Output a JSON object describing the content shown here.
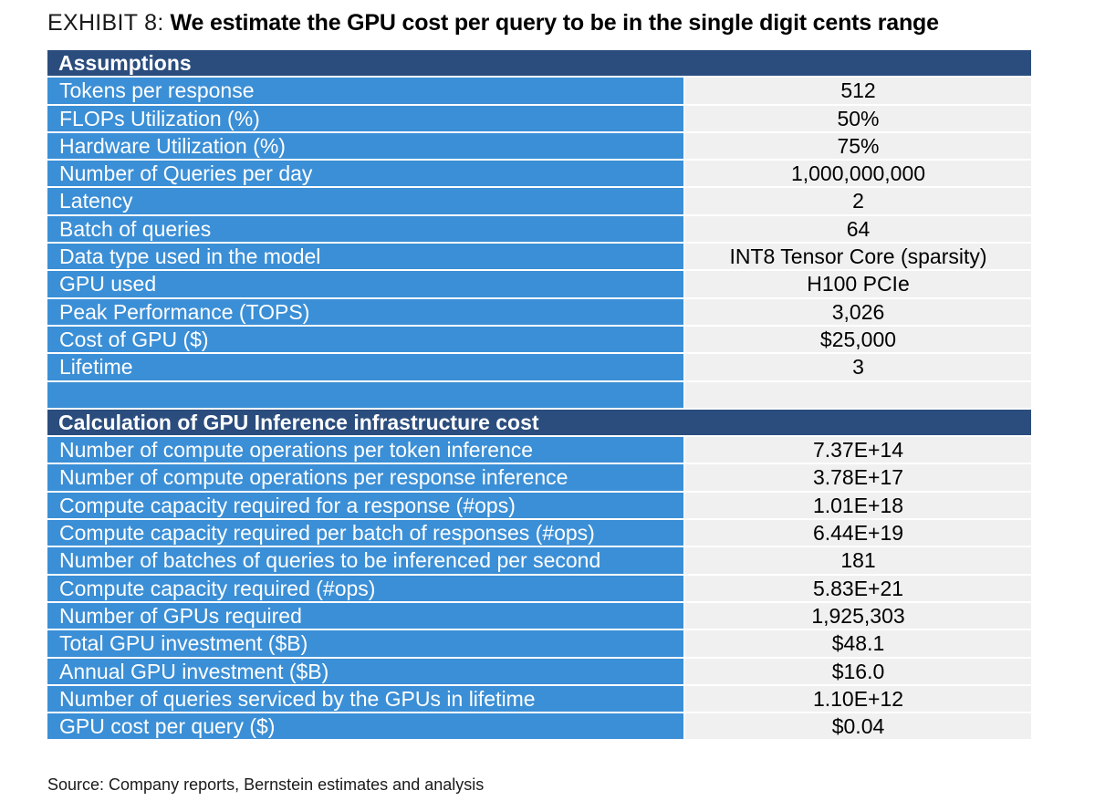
{
  "exhibit": {
    "label": "EXHIBIT 8:",
    "headline": "We estimate the GPU cost per query to be in the single digit cents range"
  },
  "assumptions": {
    "header": "Assumptions",
    "rows": [
      {
        "label": "Tokens per response",
        "value": "512"
      },
      {
        "label": "FLOPs Utilization (%)",
        "value": "50%"
      },
      {
        "label": "Hardware Utilization (%)",
        "value": "75%"
      },
      {
        "label": "Number of Queries per day",
        "value": "1,000,000,000"
      },
      {
        "label": "Latency",
        "value": "2"
      },
      {
        "label": "Batch of queries",
        "value": "64"
      },
      {
        "label": "Data type used in the model",
        "value": "INT8 Tensor Core (sparsity)"
      },
      {
        "label": "GPU used",
        "value": "H100 PCIe"
      },
      {
        "label": "Peak Performance (TOPS)",
        "value": "3,026"
      },
      {
        "label": "Cost of GPU ($)",
        "value": "$25,000"
      },
      {
        "label": "Lifetime",
        "value": "3"
      },
      {
        "label": "",
        "value": ""
      }
    ]
  },
  "calculation": {
    "header": "Calculation of GPU Inference infrastructure cost",
    "rows": [
      {
        "label": "Number of compute operations per token inference",
        "value": "7.37E+14"
      },
      {
        "label": "Number of compute operations per response inference",
        "value": "3.78E+17"
      },
      {
        "label": "Compute capacity required for a response (#ops)",
        "value": "1.01E+18"
      },
      {
        "label": "Compute capacity required per batch of responses (#ops)",
        "value": "6.44E+19"
      },
      {
        "label": "Number of batches of queries to be inferenced per second",
        "value": "181"
      },
      {
        "label": "Compute capacity required (#ops)",
        "value": "5.83E+21"
      },
      {
        "label": "Number of GPUs required",
        "value": "1,925,303"
      },
      {
        "label": "Total GPU investment ($B)",
        "value": "$48.1"
      },
      {
        "label": "Annual GPU investment ($B)",
        "value": "$16.0"
      },
      {
        "label": "Number of queries serviced by the GPUs in lifetime",
        "value": "1.10E+12"
      },
      {
        "label": "GPU cost per query ($)",
        "value": "$0.04"
      }
    ]
  },
  "source": "Source: Company reports, Bernstein estimates and analysis",
  "colors": {
    "section_header_bg": "#2b4d7e",
    "label_cell_bg": "#3b8fd6",
    "value_cell_bg": "#f0f0f0"
  }
}
